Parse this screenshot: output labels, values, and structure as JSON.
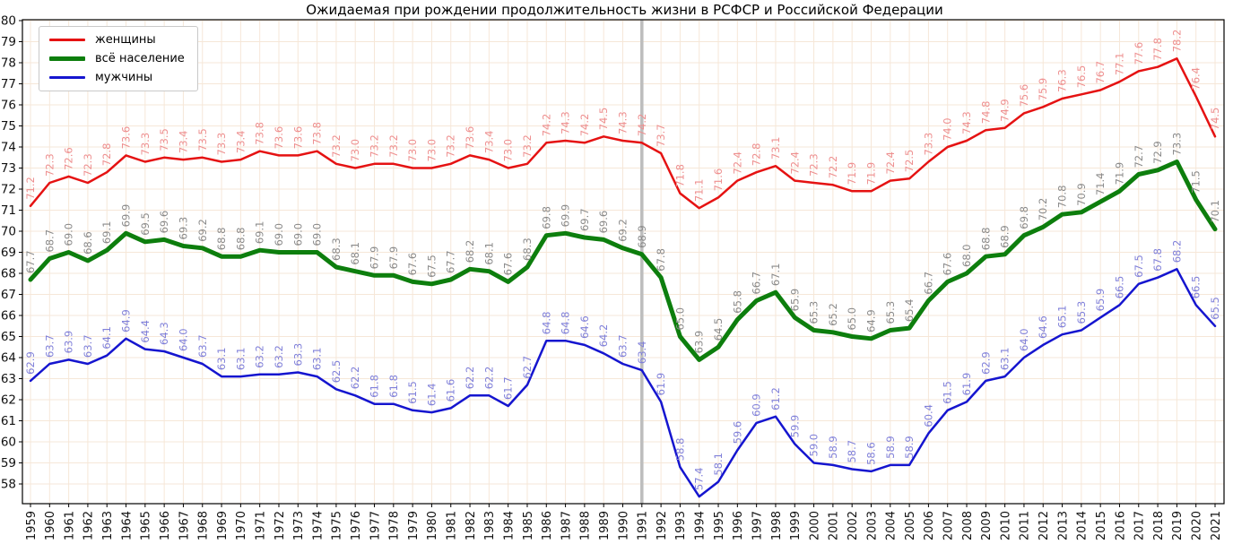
{
  "chart_data": {
    "type": "line",
    "title": "Ожидаемая при рождении продолжительность жизни в РСФСР и Российской Федерации",
    "xlabel": "",
    "ylabel": "",
    "grid": true,
    "legend_position": "upper-left",
    "ylim": [
      57.05,
      80
    ],
    "yticks": [
      58,
      59,
      60,
      61,
      62,
      63,
      64,
      65,
      66,
      67,
      68,
      69,
      70,
      71,
      72,
      73,
      74,
      75,
      76,
      77,
      78,
      79,
      80
    ],
    "divider_year": 1991,
    "divider_color": "#bdbdbd",
    "x": [
      1959,
      1960,
      1961,
      1962,
      1963,
      1964,
      1965,
      1966,
      1967,
      1968,
      1969,
      1970,
      1971,
      1972,
      1973,
      1974,
      1975,
      1976,
      1977,
      1978,
      1979,
      1980,
      1981,
      1982,
      1983,
      1984,
      1985,
      1986,
      1987,
      1988,
      1989,
      1990,
      1991,
      1992,
      1993,
      1994,
      1995,
      1996,
      1997,
      1998,
      1999,
      2000,
      2001,
      2002,
      2003,
      2004,
      2005,
      2006,
      2007,
      2008,
      2009,
      2010,
      2011,
      2012,
      2013,
      2014,
      2015,
      2016,
      2017,
      2018,
      2019,
      2020,
      2021
    ],
    "series": [
      {
        "name": "женщины",
        "color": "#e51212",
        "label_color": "#ee8f8f",
        "values": [
          71.2,
          72.3,
          72.6,
          72.3,
          72.8,
          73.6,
          73.3,
          73.5,
          73.4,
          73.5,
          73.3,
          73.4,
          73.8,
          73.6,
          73.6,
          73.8,
          73.2,
          73.0,
          73.2,
          73.2,
          73.0,
          73.0,
          73.2,
          73.6,
          73.4,
          73.0,
          73.2,
          74.2,
          74.3,
          74.2,
          74.5,
          74.3,
          74.2,
          73.7,
          71.8,
          71.1,
          71.6,
          72.4,
          72.8,
          73.1,
          72.4,
          72.3,
          72.2,
          71.9,
          71.9,
          72.4,
          72.5,
          73.3,
          74.0,
          74.3,
          74.8,
          74.9,
          75.6,
          75.9,
          76.3,
          76.5,
          76.7,
          77.1,
          77.6,
          77.8,
          78.2,
          76.4,
          74.5
        ]
      },
      {
        "name": "всё население",
        "color": "#0d7e0d",
        "label_color": "#8a8a8a",
        "values": [
          67.7,
          68.7,
          69.0,
          68.6,
          69.1,
          69.9,
          69.5,
          69.6,
          69.3,
          69.2,
          68.8,
          68.8,
          69.1,
          69.0,
          69.0,
          69.0,
          68.3,
          68.1,
          67.9,
          67.9,
          67.6,
          67.5,
          67.7,
          68.2,
          68.1,
          67.6,
          68.3,
          69.8,
          69.9,
          69.7,
          69.6,
          69.2,
          68.9,
          67.8,
          65.0,
          63.9,
          64.5,
          65.8,
          66.7,
          67.1,
          65.9,
          65.3,
          65.2,
          65.0,
          64.9,
          65.3,
          65.4,
          66.7,
          67.6,
          68.0,
          68.8,
          68.9,
          69.8,
          70.2,
          70.8,
          70.9,
          71.4,
          71.9,
          72.7,
          72.9,
          73.3,
          71.5,
          70.1
        ]
      },
      {
        "name": "мужчины",
        "color": "#1515cf",
        "label_color": "#8080d9",
        "values": [
          62.9,
          63.7,
          63.9,
          63.7,
          64.1,
          64.9,
          64.4,
          64.3,
          64.0,
          63.7,
          63.1,
          63.1,
          63.2,
          63.2,
          63.3,
          63.1,
          62.5,
          62.2,
          61.8,
          61.8,
          61.5,
          61.4,
          61.6,
          62.2,
          62.2,
          61.7,
          62.7,
          64.8,
          64.8,
          64.6,
          64.2,
          63.7,
          63.4,
          61.9,
          58.8,
          57.4,
          58.1,
          59.6,
          60.9,
          61.2,
          59.9,
          59.0,
          58.9,
          58.7,
          58.6,
          58.9,
          58.9,
          60.4,
          61.5,
          61.9,
          62.9,
          63.1,
          64.0,
          64.6,
          65.1,
          65.3,
          65.9,
          66.5,
          67.5,
          67.8,
          68.2,
          66.5,
          65.5
        ]
      }
    ]
  }
}
